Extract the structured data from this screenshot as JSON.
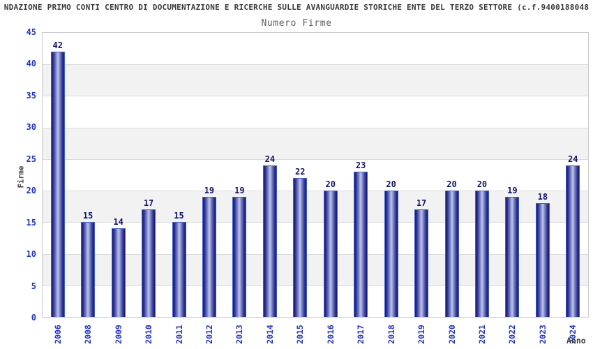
{
  "header": {
    "title": "NDAZIONE PRIMO CONTI CENTRO DI DOCUMENTAZIONE E RICERCHE SULLE AVANGUARDIE STORICHE ENTE DEL TERZO SETTORE (c.f.9400188048",
    "subtitle": "Numero Firme"
  },
  "chart_data": {
    "type": "bar",
    "title": "Numero Firme",
    "categories": [
      "2006",
      "2008",
      "2009",
      "2010",
      "2011",
      "2012",
      "2013",
      "2014",
      "2015",
      "2016",
      "2017",
      "2018",
      "2019",
      "2020",
      "2021",
      "2022",
      "2023",
      "2024"
    ],
    "values": [
      42,
      15,
      14,
      17,
      15,
      19,
      19,
      24,
      22,
      20,
      23,
      20,
      17,
      20,
      20,
      19,
      18,
      24
    ],
    "xlabel": "Anno",
    "ylabel": "Firme",
    "ylim": [
      0,
      45
    ],
    "ytick_step": 5,
    "grid": "horizontal-bands-alternating",
    "legend": "none",
    "colors": {
      "title_text": "#3a3a3a",
      "subtitle_text": "#5f5f5f",
      "axis_title_text": "#3d3d3d",
      "tick_label": "#2233cc",
      "value_label": "#13136b",
      "bar_border": "#3f5fd7",
      "bar_dark": "#191975",
      "bar_mid": "#2a2f8f",
      "bar_light": "#b4bce8",
      "band_white": "#ffffff",
      "band_gray": "#f2f2f2",
      "gridline": "#dcdcdc",
      "plot_border": "#c9c9c9",
      "background": "#ffffff"
    }
  }
}
